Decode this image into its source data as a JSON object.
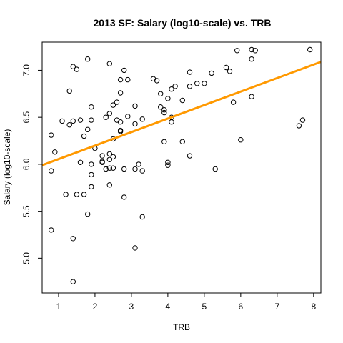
{
  "chart_data": {
    "type": "scatter",
    "title": "2013 SF: Salary (log10-scale) vs. TRB",
    "xlabel": "TRB",
    "ylabel": "Salary (log10-scale)",
    "xlim": [
      0.55,
      8.2
    ],
    "ylim": [
      4.63,
      7.3
    ],
    "xticks": [
      1,
      2,
      3,
      4,
      5,
      6,
      7,
      8
    ],
    "yticks": [
      5.0,
      5.5,
      6.0,
      6.5,
      7.0
    ],
    "ytick_labels": [
      "5.0",
      "5.5",
      "6.0",
      "6.5",
      "7.0"
    ],
    "grid": false,
    "legend": "none",
    "point_color": "#000000",
    "fit_line": {
      "color": "#ff9900",
      "x": [
        0.55,
        8.2
      ],
      "y": [
        5.99,
        7.09
      ]
    },
    "points": [
      {
        "x": 0.8,
        "y": 6.31
      },
      {
        "x": 0.8,
        "y": 5.93
      },
      {
        "x": 0.8,
        "y": 5.3
      },
      {
        "x": 0.9,
        "y": 6.13
      },
      {
        "x": 1.1,
        "y": 6.46
      },
      {
        "x": 1.2,
        "y": 5.68
      },
      {
        "x": 1.3,
        "y": 6.78
      },
      {
        "x": 1.3,
        "y": 6.42
      },
      {
        "x": 1.4,
        "y": 7.04
      },
      {
        "x": 1.4,
        "y": 6.46
      },
      {
        "x": 1.4,
        "y": 5.21
      },
      {
        "x": 1.4,
        "y": 4.75
      },
      {
        "x": 1.5,
        "y": 7.01
      },
      {
        "x": 1.5,
        "y": 5.68
      },
      {
        "x": 1.6,
        "y": 6.47
      },
      {
        "x": 1.6,
        "y": 6.02
      },
      {
        "x": 1.7,
        "y": 6.3
      },
      {
        "x": 1.7,
        "y": 5.68
      },
      {
        "x": 1.8,
        "y": 7.12
      },
      {
        "x": 1.8,
        "y": 6.37
      },
      {
        "x": 1.8,
        "y": 5.47
      },
      {
        "x": 1.9,
        "y": 6.61
      },
      {
        "x": 1.9,
        "y": 6.47
      },
      {
        "x": 1.9,
        "y": 6.0
      },
      {
        "x": 1.9,
        "y": 5.89
      },
      {
        "x": 1.9,
        "y": 5.76
      },
      {
        "x": 2.0,
        "y": 6.17
      },
      {
        "x": 2.2,
        "y": 6.09
      },
      {
        "x": 2.2,
        "y": 6.03
      },
      {
        "x": 2.2,
        "y": 6.02
      },
      {
        "x": 2.3,
        "y": 5.95
      },
      {
        "x": 2.3,
        "y": 6.5
      },
      {
        "x": 2.4,
        "y": 7.07
      },
      {
        "x": 2.4,
        "y": 6.54
      },
      {
        "x": 2.4,
        "y": 6.11
      },
      {
        "x": 2.4,
        "y": 5.96
      },
      {
        "x": 2.4,
        "y": 5.78
      },
      {
        "x": 2.4,
        "y": 6.05
      },
      {
        "x": 2.5,
        "y": 6.63
      },
      {
        "x": 2.5,
        "y": 6.27
      },
      {
        "x": 2.5,
        "y": 6.08
      },
      {
        "x": 2.5,
        "y": 5.96
      },
      {
        "x": 2.6,
        "y": 6.66
      },
      {
        "x": 2.6,
        "y": 6.47
      },
      {
        "x": 2.7,
        "y": 6.9
      },
      {
        "x": 2.7,
        "y": 6.76
      },
      {
        "x": 2.7,
        "y": 6.45
      },
      {
        "x": 2.7,
        "y": 6.36
      },
      {
        "x": 2.7,
        "y": 6.35
      },
      {
        "x": 2.8,
        "y": 7.0
      },
      {
        "x": 2.8,
        "y": 5.95
      },
      {
        "x": 2.8,
        "y": 5.65
      },
      {
        "x": 2.9,
        "y": 6.9
      },
      {
        "x": 2.9,
        "y": 6.51
      },
      {
        "x": 3.1,
        "y": 6.62
      },
      {
        "x": 3.1,
        "y": 6.43
      },
      {
        "x": 3.1,
        "y": 5.95
      },
      {
        "x": 3.1,
        "y": 5.11
      },
      {
        "x": 3.2,
        "y": 6.0
      },
      {
        "x": 3.3,
        "y": 6.48
      },
      {
        "x": 3.3,
        "y": 5.93
      },
      {
        "x": 3.3,
        "y": 5.44
      },
      {
        "x": 3.6,
        "y": 6.91
      },
      {
        "x": 3.7,
        "y": 6.89
      },
      {
        "x": 3.8,
        "y": 6.75
      },
      {
        "x": 3.8,
        "y": 6.61
      },
      {
        "x": 3.9,
        "y": 6.58
      },
      {
        "x": 3.9,
        "y": 6.55
      },
      {
        "x": 3.9,
        "y": 6.24
      },
      {
        "x": 4.0,
        "y": 6.7
      },
      {
        "x": 4.0,
        "y": 6.02
      },
      {
        "x": 4.0,
        "y": 5.99
      },
      {
        "x": 4.1,
        "y": 6.8
      },
      {
        "x": 4.1,
        "y": 6.5
      },
      {
        "x": 4.1,
        "y": 6.45
      },
      {
        "x": 4.2,
        "y": 6.83
      },
      {
        "x": 4.4,
        "y": 6.68
      },
      {
        "x": 4.4,
        "y": 6.24
      },
      {
        "x": 4.6,
        "y": 6.98
      },
      {
        "x": 4.6,
        "y": 6.83
      },
      {
        "x": 4.6,
        "y": 6.09
      },
      {
        "x": 4.8,
        "y": 6.86
      },
      {
        "x": 5.0,
        "y": 6.86
      },
      {
        "x": 5.2,
        "y": 6.97
      },
      {
        "x": 5.3,
        "y": 5.95
      },
      {
        "x": 5.6,
        "y": 7.03
      },
      {
        "x": 5.7,
        "y": 6.99
      },
      {
        "x": 5.8,
        "y": 6.66
      },
      {
        "x": 5.9,
        "y": 7.21
      },
      {
        "x": 6.0,
        "y": 6.26
      },
      {
        "x": 6.3,
        "y": 7.22
      },
      {
        "x": 6.3,
        "y": 7.12
      },
      {
        "x": 6.3,
        "y": 6.72
      },
      {
        "x": 6.4,
        "y": 7.21
      },
      {
        "x": 7.6,
        "y": 6.41
      },
      {
        "x": 7.7,
        "y": 6.47
      },
      {
        "x": 7.9,
        "y": 7.22
      }
    ]
  }
}
